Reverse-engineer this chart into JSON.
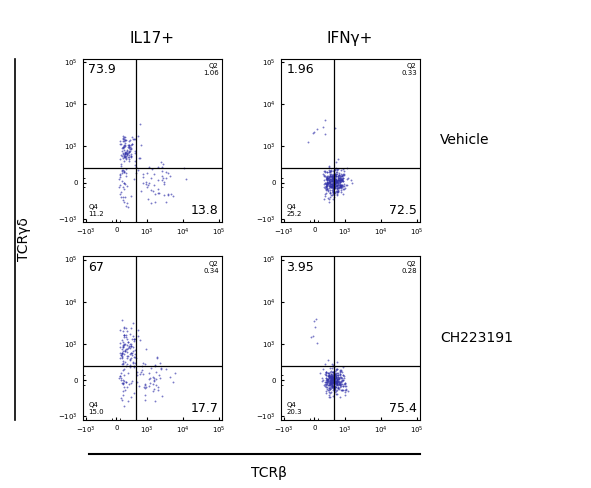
{
  "col_titles": [
    "IL17+",
    "IFNγ+"
  ],
  "row_titles": [
    "Vehicle",
    "CH223191"
  ],
  "y_axis_label": "TCRγδ",
  "x_axis_label": "TCRβ",
  "panels": [
    {
      "tl": "73.9",
      "q2": "Q2\n1.06",
      "q4": "Q4\n11.2",
      "br": "13.8",
      "row": 0,
      "col": 0
    },
    {
      "tl": "1.96",
      "q2": "Q2\n0.33",
      "q4": "Q4\n25.2",
      "br": "72.5",
      "row": 0,
      "col": 1
    },
    {
      "tl": "67",
      "q2": "Q2\n0.34",
      "q4": "Q4\n15.0",
      "br": "17.7",
      "row": 1,
      "col": 0
    },
    {
      "tl": "3.95",
      "q2": "Q2\n0.28",
      "q4": "Q4\n20.3",
      "br": "75.4",
      "row": 1,
      "col": 1
    }
  ],
  "dot_color": "#3333aa",
  "gate_x": 500,
  "gate_y": 300,
  "xlim": [
    -1200,
    120000
  ],
  "ylim": [
    -1200,
    120000
  ],
  "xticks": [
    -1000,
    0,
    1000,
    10000,
    100000
  ],
  "yticks": [
    -1000,
    0,
    1000,
    10000,
    100000
  ],
  "linthresh": 300,
  "linscale": 0.3
}
